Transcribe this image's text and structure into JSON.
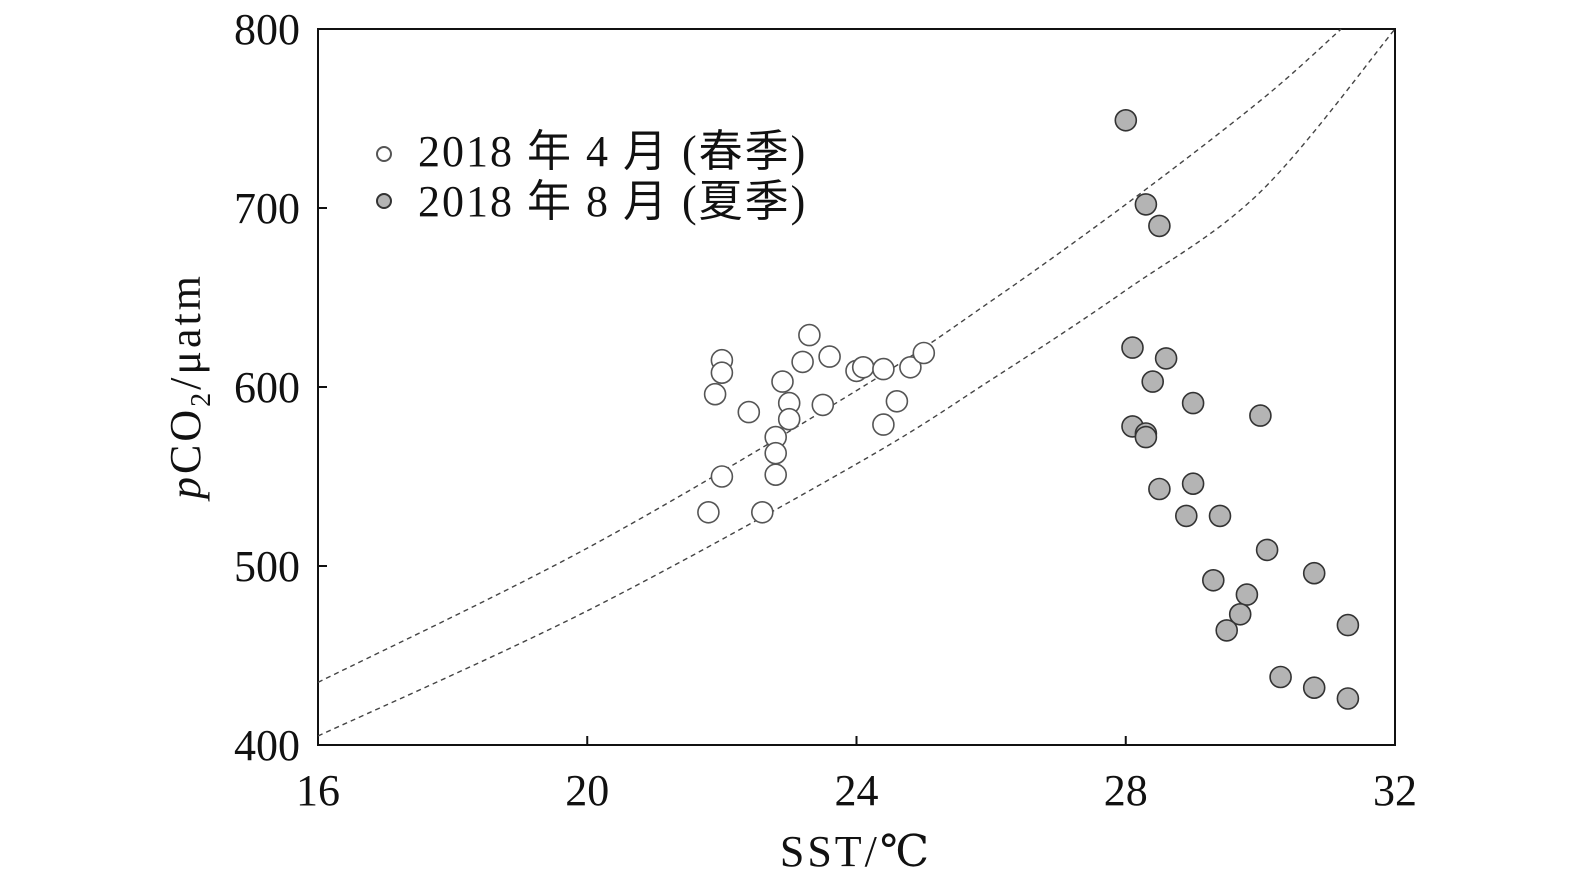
{
  "chart_data": {
    "type": "scatter",
    "xlabel": "SST/℃",
    "ylabel": {
      "prefix": "p",
      "main": "CO",
      "subscript": "2",
      "suffix": "/μatm"
    },
    "xlim": [
      16,
      32
    ],
    "ylim": [
      400,
      800
    ],
    "x_ticks": [
      16,
      20,
      24,
      28,
      32
    ],
    "y_ticks": [
      400,
      500,
      600,
      700,
      800
    ],
    "grid": false,
    "legend_position": "top-left",
    "series": [
      {
        "name": "2018 年 4 月 (春季)",
        "fill": "#ffffff",
        "stroke": "#555555",
        "points": [
          [
            21.8,
            530
          ],
          [
            21.9,
            596
          ],
          [
            22.0,
            615
          ],
          [
            22.0,
            608
          ],
          [
            22.0,
            550
          ],
          [
            22.4,
            586
          ],
          [
            22.6,
            530
          ],
          [
            22.8,
            572
          ],
          [
            22.8,
            563
          ],
          [
            22.8,
            551
          ],
          [
            22.9,
            603
          ],
          [
            23.0,
            591
          ],
          [
            23.0,
            582
          ],
          [
            23.2,
            614
          ],
          [
            23.3,
            629
          ],
          [
            23.5,
            590
          ],
          [
            23.6,
            617
          ],
          [
            24.0,
            609
          ],
          [
            24.1,
            611
          ],
          [
            24.4,
            610
          ],
          [
            24.4,
            579
          ],
          [
            24.6,
            592
          ],
          [
            24.8,
            611
          ],
          [
            25.0,
            619
          ]
        ]
      },
      {
        "name": "2018 年 8 月 (夏季)",
        "fill": "#b4b4b4",
        "stroke": "#333333",
        "points": [
          [
            28.0,
            749
          ],
          [
            28.3,
            702
          ],
          [
            28.5,
            690
          ],
          [
            28.1,
            622
          ],
          [
            28.6,
            616
          ],
          [
            28.4,
            603
          ],
          [
            29.0,
            591
          ],
          [
            30.0,
            584
          ],
          [
            28.1,
            578
          ],
          [
            28.3,
            574
          ],
          [
            28.3,
            572
          ],
          [
            28.5,
            543
          ],
          [
            29.0,
            546
          ],
          [
            28.9,
            528
          ],
          [
            29.4,
            528
          ],
          [
            30.1,
            509
          ],
          [
            30.8,
            496
          ],
          [
            29.3,
            492
          ],
          [
            29.8,
            484
          ],
          [
            29.7,
            473
          ],
          [
            29.5,
            464
          ],
          [
            31.3,
            467
          ],
          [
            30.3,
            438
          ],
          [
            30.8,
            432
          ],
          [
            31.3,
            426
          ]
        ]
      }
    ],
    "reference_curves": [
      {
        "style": "dashed",
        "color": "#444444",
        "points": [
          [
            16,
            435
          ],
          [
            20,
            510
          ],
          [
            24,
            598
          ],
          [
            26,
            648
          ],
          [
            28,
            702
          ],
          [
            30,
            760
          ],
          [
            31.2,
            800
          ]
        ]
      },
      {
        "style": "dashed",
        "color": "#444444",
        "points": [
          [
            16,
            405
          ],
          [
            20,
            475
          ],
          [
            24,
            557
          ],
          [
            26,
            604
          ],
          [
            28,
            654
          ],
          [
            30,
            709
          ],
          [
            32,
            800
          ]
        ]
      }
    ]
  }
}
